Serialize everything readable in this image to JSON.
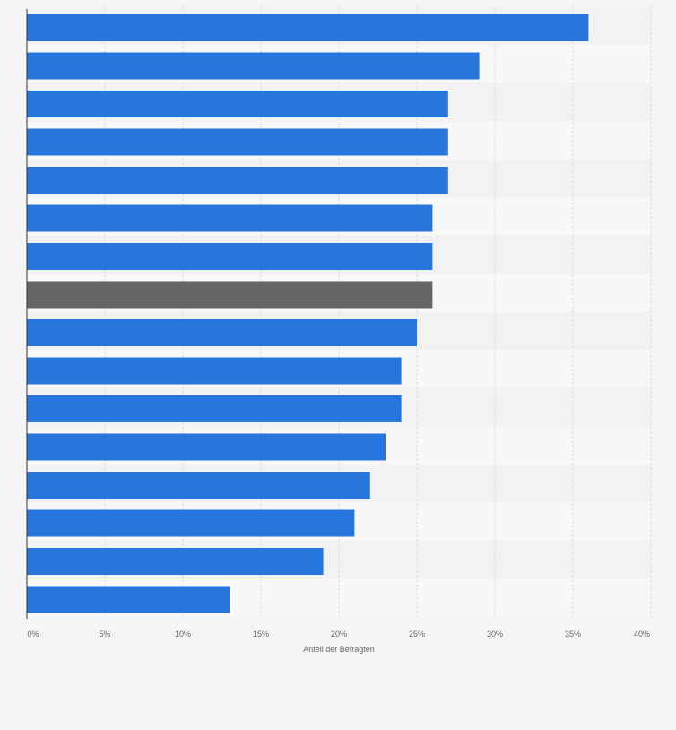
{
  "chart_data": {
    "type": "bar",
    "orientation": "horizontal",
    "categories": [
      "",
      "",
      "",
      "",
      "",
      "",
      "",
      "",
      "",
      "",
      "",
      "",
      "",
      "",
      "",
      ""
    ],
    "values": [
      36,
      29,
      27,
      27,
      27,
      26,
      26,
      26,
      25,
      24,
      24,
      23,
      22,
      21,
      19,
      13
    ],
    "highlight_index": 7,
    "xlabel": "Anteil der Befragten",
    "xlim": [
      0,
      40
    ],
    "xticks": [
      0,
      5,
      10,
      15,
      20,
      25,
      30,
      35,
      40
    ],
    "xtick_labels": [
      "0%",
      "5%",
      "10%",
      "15%",
      "20%",
      "25%",
      "30%",
      "35%",
      "40%"
    ],
    "grid": true,
    "colors": {
      "bar": "#2776dd",
      "highlight": "#666666",
      "background": "#f5f5f5",
      "band_light": "#f8f8f8",
      "band_dark": "#f2f2f2",
      "grid": "#dcdcdc",
      "axis": "#333333",
      "tick_text": "#666666"
    }
  }
}
